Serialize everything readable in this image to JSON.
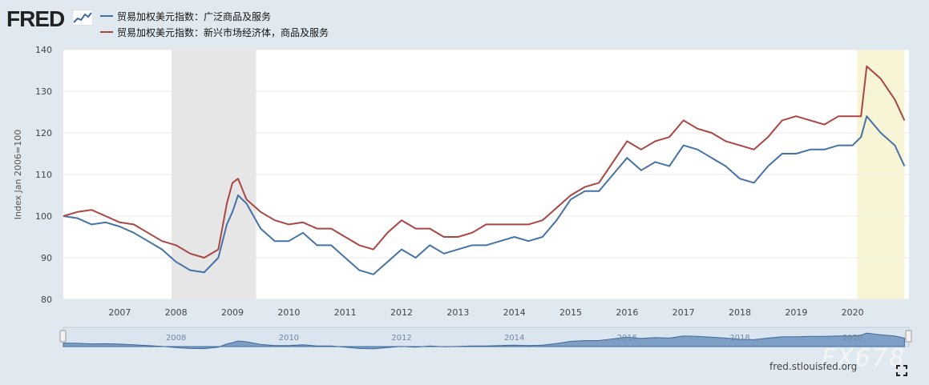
{
  "brand": {
    "logo_text": "FRED",
    "logo_icon": "trend-chart-icon"
  },
  "legend": [
    {
      "label": "贸易加权美元指数：广泛商品及服务",
      "color": "#4572a7"
    },
    {
      "label": "贸易加权美元指数：新兴市场经济体，商品及服务",
      "color": "#aa4643"
    }
  ],
  "source_text": "fred.stlouisfed.org",
  "watermark_text": "FX678",
  "chart_data": {
    "type": "line",
    "title": "",
    "xlabel": "",
    "ylabel": "Index Jan 2006=100",
    "xlim": [
      2006.0,
      2021.0
    ],
    "ylim": [
      80,
      140
    ],
    "y_ticks": [
      80,
      90,
      100,
      110,
      120,
      130,
      140
    ],
    "x_ticks": [
      2007,
      2008,
      2009,
      2010,
      2011,
      2012,
      2013,
      2014,
      2015,
      2016,
      2017,
      2018,
      2019,
      2020
    ],
    "navigator_labels": [
      "2008",
      "2010",
      "2012",
      "2014",
      "2016",
      "2018",
      "2020"
    ],
    "recession_bands": [
      [
        2007.92,
        2009.42
      ],
      [
        2020.08,
        2020.92
      ]
    ],
    "series": [
      {
        "name": "贸易加权美元指数：广泛商品及服务",
        "color": "#4572a7",
        "x": [
          2006.0,
          2006.25,
          2006.5,
          2006.75,
          2007.0,
          2007.25,
          2007.5,
          2007.75,
          2008.0,
          2008.25,
          2008.5,
          2008.75,
          2008.9,
          2009.0,
          2009.1,
          2009.25,
          2009.5,
          2009.75,
          2010.0,
          2010.25,
          2010.5,
          2010.75,
          2011.0,
          2011.25,
          2011.5,
          2011.75,
          2012.0,
          2012.25,
          2012.5,
          2012.75,
          2013.0,
          2013.25,
          2013.5,
          2013.75,
          2014.0,
          2014.25,
          2014.5,
          2014.75,
          2015.0,
          2015.25,
          2015.5,
          2015.75,
          2016.0,
          2016.25,
          2016.5,
          2016.75,
          2017.0,
          2017.25,
          2017.5,
          2017.75,
          2018.0,
          2018.25,
          2018.5,
          2018.75,
          2019.0,
          2019.25,
          2019.5,
          2019.75,
          2020.0,
          2020.15,
          2020.25,
          2020.5,
          2020.75,
          2020.92
        ],
        "values": [
          100,
          99.5,
          98,
          98.5,
          97.5,
          96,
          94,
          92,
          89,
          87,
          86.5,
          90,
          98,
          101,
          105,
          103,
          97,
          94,
          94,
          96,
          93,
          93,
          90,
          87,
          86,
          89,
          92,
          90,
          93,
          91,
          92,
          93,
          93,
          94,
          95,
          94,
          95,
          99,
          104,
          106,
          106,
          110,
          114,
          111,
          113,
          112,
          117,
          116,
          114,
          112,
          109,
          108,
          112,
          115,
          115,
          116,
          116,
          117,
          117,
          119,
          124,
          120,
          117,
          112
        ]
      },
      {
        "name": "贸易加权美元指数：新兴市场经济体，商品及服务",
        "color": "#aa4643",
        "x": [
          2006.0,
          2006.25,
          2006.5,
          2006.75,
          2007.0,
          2007.25,
          2007.5,
          2007.75,
          2008.0,
          2008.25,
          2008.5,
          2008.75,
          2008.9,
          2009.0,
          2009.1,
          2009.25,
          2009.5,
          2009.75,
          2010.0,
          2010.25,
          2010.5,
          2010.75,
          2011.0,
          2011.25,
          2011.5,
          2011.75,
          2012.0,
          2012.25,
          2012.5,
          2012.75,
          2013.0,
          2013.25,
          2013.5,
          2013.75,
          2014.0,
          2014.25,
          2014.5,
          2014.75,
          2015.0,
          2015.25,
          2015.5,
          2015.75,
          2016.0,
          2016.25,
          2016.5,
          2016.75,
          2017.0,
          2017.25,
          2017.5,
          2017.75,
          2018.0,
          2018.25,
          2018.5,
          2018.75,
          2019.0,
          2019.25,
          2019.5,
          2019.75,
          2020.0,
          2020.15,
          2020.25,
          2020.5,
          2020.75,
          2020.92
        ],
        "values": [
          100,
          101,
          101.5,
          100,
          98.5,
          98,
          96,
          94,
          93,
          91,
          90,
          92,
          103,
          108,
          109,
          104,
          101,
          99,
          98,
          98.5,
          97,
          97,
          95,
          93,
          92,
          96,
          99,
          97,
          97,
          95,
          95,
          96,
          98,
          98,
          98,
          98,
          99,
          102,
          105,
          107,
          108,
          113,
          118,
          116,
          118,
          119,
          123,
          121,
          120,
          118,
          117,
          116,
          119,
          123,
          124,
          123,
          122,
          124,
          124,
          124,
          136,
          133,
          128,
          123
        ]
      }
    ]
  }
}
